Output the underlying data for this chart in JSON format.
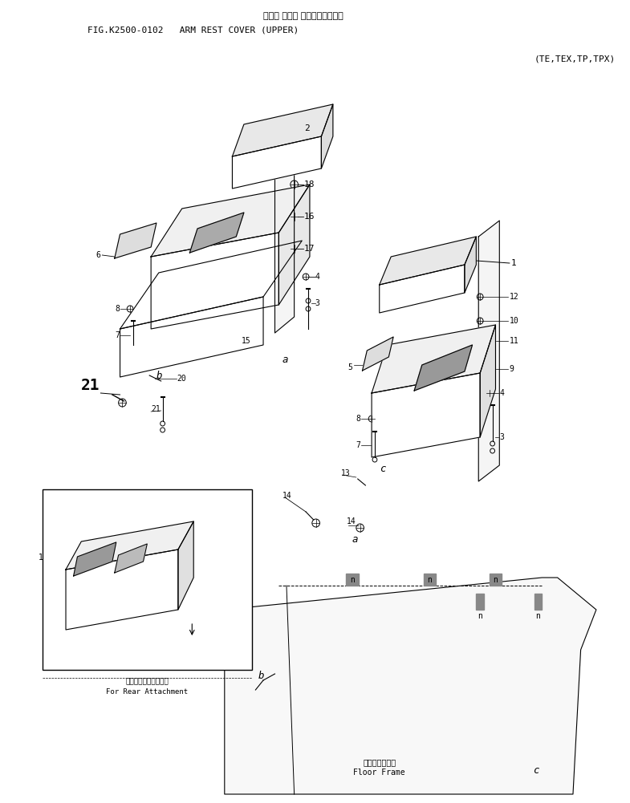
{
  "title_japanese": "アーム レスト カバー（アッパ）",
  "title_english": "FIG.K2500-0102   ARM REST COVER (UPPER)",
  "subtitle": "(TE,TEX,TP,TPX)",
  "bg_color": "#ffffff",
  "line_color": "#000000",
  "text_color": "#000000",
  "fig_width": 7.85,
  "fig_height": 10.01,
  "inset_label_japanese": "後方用アタッチメント",
  "inset_label_english": "For Rear Attachment",
  "floor_frame_japanese": "フロアフレーム",
  "floor_frame_english": "Floor Frame"
}
